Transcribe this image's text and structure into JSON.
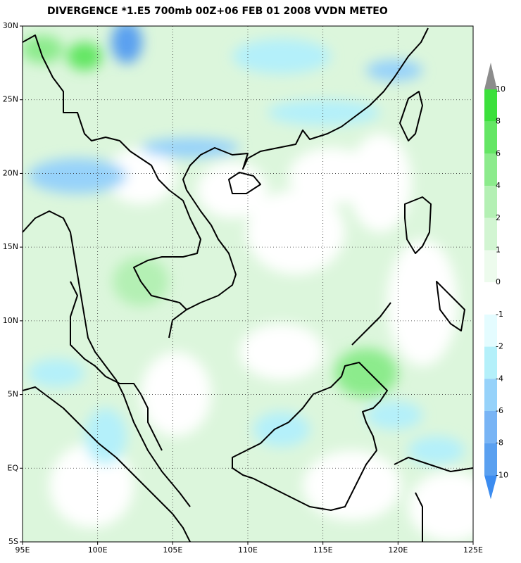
{
  "title": "DIVERGENCE *1.E5 700mb 00Z+06 FEB 01 2008 VVDN METEO",
  "lat_labels": [
    "30N",
    "25N",
    "20N",
    "15N",
    "10N",
    "5N",
    "EQ",
    "5S"
  ],
  "lon_labels": [
    "95E",
    "100E",
    "105E",
    "110E",
    "115E",
    "120E",
    "125E"
  ],
  "colorbar": {
    "levels": [
      10,
      8,
      6,
      4,
      2,
      1,
      0,
      -1,
      -2,
      -4,
      -6,
      -8,
      -10
    ],
    "colors": [
      "#8c8c8c",
      "#3ce03c",
      "#64e664",
      "#8ceb8c",
      "#b4f0b4",
      "#d2f5d2",
      "#edfbed",
      "#ffffff",
      "#e4fcff",
      "#b4f0fa",
      "#96d2fa",
      "#78b4f5",
      "#5aa0f0",
      "#3c8cf0"
    ]
  }
}
